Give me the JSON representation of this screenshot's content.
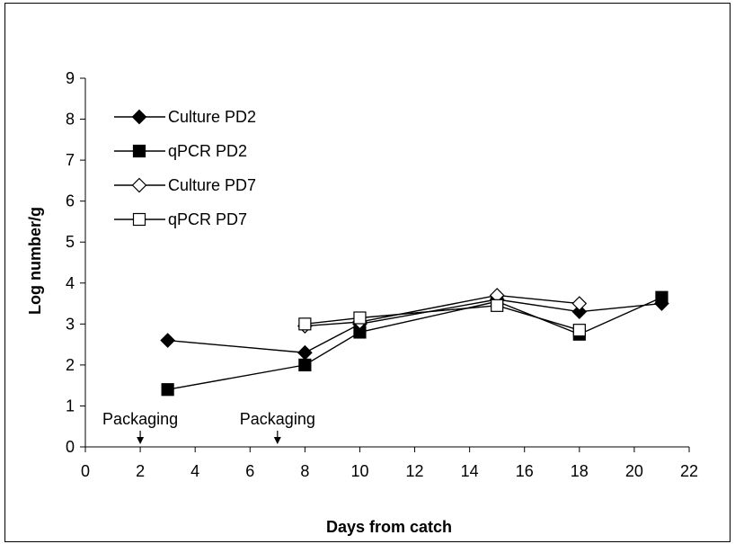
{
  "chart_data": {
    "type": "line",
    "title": "",
    "xlabel": "Days from catch",
    "ylabel": "Log number/g",
    "xlim": [
      0,
      22
    ],
    "ylim": [
      0,
      9
    ],
    "xticks": [
      0,
      2,
      4,
      6,
      8,
      10,
      12,
      14,
      16,
      18,
      20,
      22
    ],
    "yticks": [
      0,
      1,
      2,
      3,
      4,
      5,
      6,
      7,
      8,
      9
    ],
    "grid": false,
    "legend_position": "top-left",
    "series": [
      {
        "name": "Culture PD2",
        "marker": "diamond-filled",
        "color": "#000000",
        "x": [
          3,
          8,
          10,
          15,
          18,
          21
        ],
        "y": [
          2.6,
          2.3,
          3.0,
          3.6,
          3.3,
          3.5
        ]
      },
      {
        "name": "qPCR PD2",
        "marker": "square-filled",
        "color": "#000000",
        "x": [
          3,
          8,
          10,
          15,
          18,
          21
        ],
        "y": [
          1.4,
          2.0,
          2.8,
          3.55,
          2.75,
          3.65
        ]
      },
      {
        "name": "Culture PD7",
        "marker": "diamond-open",
        "color": "#000000",
        "x": [
          8,
          10,
          15,
          18
        ],
        "y": [
          2.95,
          3.05,
          3.7,
          3.5
        ]
      },
      {
        "name": "qPCR PD7",
        "marker": "square-open",
        "color": "#000000",
        "x": [
          8,
          10,
          15,
          18
        ],
        "y": [
          3.0,
          3.15,
          3.45,
          2.85
        ]
      }
    ],
    "annotations": [
      {
        "text": "Packaging",
        "x": 2,
        "arrow": "down"
      },
      {
        "text": "Packaging",
        "x": 7,
        "arrow": "down"
      }
    ]
  }
}
